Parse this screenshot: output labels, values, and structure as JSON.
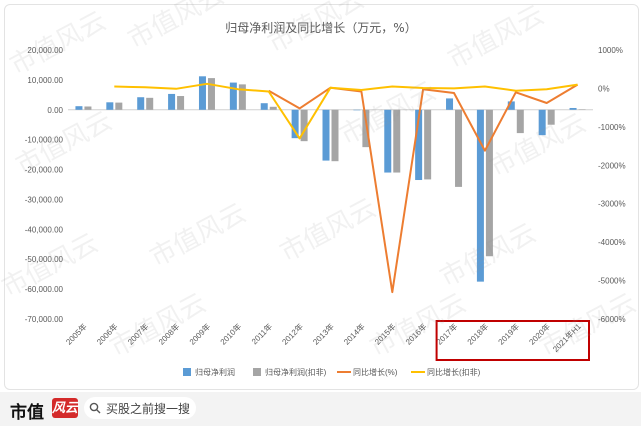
{
  "chart_data": {
    "type": "bar",
    "title": "归母净利润及同比增长（万元，%）",
    "categories": [
      "2005年",
      "2006年",
      "2007年",
      "2008年",
      "2009年",
      "2010年",
      "2011年",
      "2012年",
      "2013年",
      "2014年",
      "2015年",
      "2016年",
      "2017年",
      "2018年",
      "2019年",
      "2020年",
      "2021年H1"
    ],
    "series": [
      {
        "name": "归母净利润",
        "kind": "bar",
        "axis": "left",
        "color": "#5b9bd5",
        "values": [
          1200,
          2500,
          4200,
          5300,
          11200,
          9100,
          2200,
          -9500,
          -17000,
          0,
          -21000,
          -23500,
          3800,
          -57500,
          2800,
          -8500,
          600
        ]
      },
      {
        "name": "归母净利润(扣非)",
        "kind": "bar",
        "axis": "left",
        "color": "#a5a5a5",
        "values": [
          1100,
          2400,
          4000,
          4600,
          10600,
          8500,
          1000,
          -10500,
          -17200,
          -12500,
          -21000,
          -23300,
          -25800,
          -49000,
          -7800,
          -5000,
          100
        ]
      },
      {
        "name": "同比增长(%)",
        "kind": "line",
        "axis": "right",
        "color": "#ed7d31",
        "values": [
          null,
          null,
          null,
          null,
          null,
          null,
          -60,
          -520,
          20,
          -80,
          -5300,
          -20,
          -120,
          -1620,
          -100,
          -380,
          100
        ]
      },
      {
        "name": "同比增长(扣非)",
        "kind": "line",
        "axis": "right",
        "color": "#ffc000",
        "values": [
          null,
          50,
          30,
          -10,
          120,
          -20,
          -80,
          -1300,
          20,
          -40,
          50,
          10,
          0,
          50,
          -60,
          -20,
          100
        ]
      }
    ],
    "left_axis": {
      "ylim": [
        -70000,
        20000
      ],
      "ticks": [
        "20,000.00",
        "10,000.00",
        "0.00",
        "-10,000.00",
        "-20,000.00",
        "-30,000.00",
        "-40,000.00",
        "-50,000.00",
        "-60,000.00",
        "-70,000.00"
      ],
      "tick_values": [
        20000,
        10000,
        0,
        -10000,
        -20000,
        -30000,
        -40000,
        -50000,
        -60000,
        -70000
      ]
    },
    "right_axis": {
      "ylim": [
        -6000,
        1000
      ],
      "ticks": [
        "1000%",
        "0%",
        "-1000%",
        "-2000%",
        "-3000%",
        "-4000%",
        "-5000%",
        "-6000%"
      ],
      "tick_values": [
        1000,
        0,
        -1000,
        -2000,
        -3000,
        -4000,
        -5000,
        -6000
      ]
    },
    "highlight": {
      "from_category": "2017年",
      "to_category": "2021年H1",
      "color": "#c00000"
    },
    "legend_position": "bottom"
  },
  "watermark": {
    "text": "市值风云"
  },
  "footer": {
    "brand": "市值",
    "stamp": "风云",
    "search_placeholder": "买股之前搜一搜"
  }
}
